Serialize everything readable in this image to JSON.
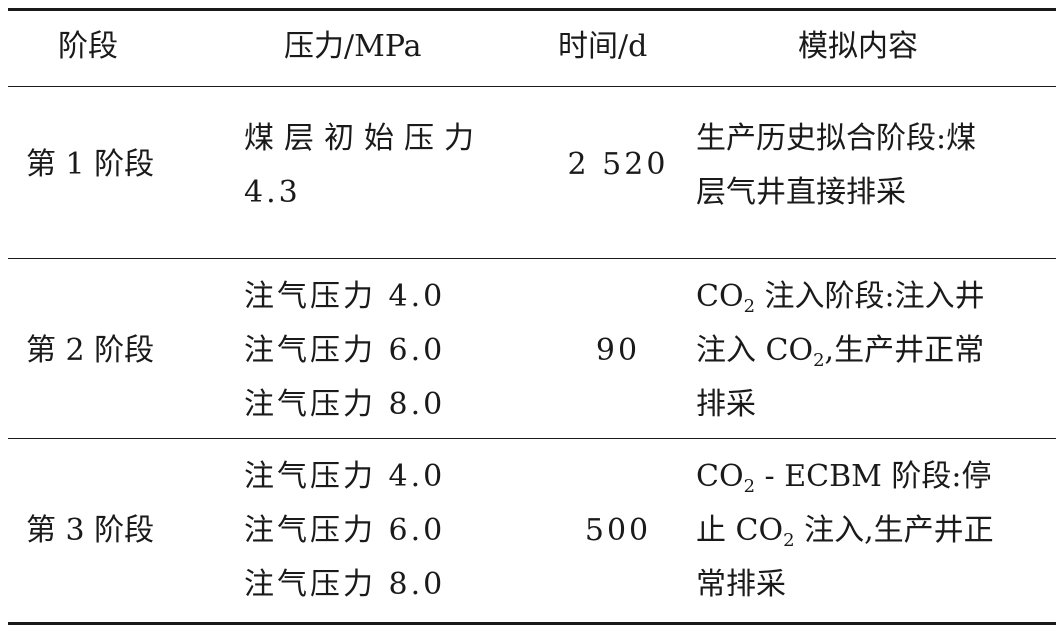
{
  "table": {
    "headers": {
      "stage": "阶段",
      "pressure": "压力/MPa",
      "time": "时间/d",
      "content": "模拟内容"
    },
    "rows": [
      {
        "stage": "第 1 阶段",
        "pressure_lines": [
          "煤层初始压力",
          "4.3"
        ],
        "time": "2 520",
        "content_lines": [
          "生产历史拟合阶段:煤",
          "层气井直接排采"
        ]
      },
      {
        "stage": "第 2 阶段",
        "pressure_lines": [
          "注气压力 4.0",
          "注气压力 6.0",
          "注气压力 8.0"
        ],
        "time": "90",
        "content_lines": [
          {
            "pre": "CO",
            "sub": "2",
            "post": " 注入阶段:注入井"
          },
          {
            "pre": "注入 CO",
            "sub": "2",
            "post": ",生产井正常"
          },
          {
            "pre": "排采",
            "sub": "",
            "post": ""
          }
        ]
      },
      {
        "stage": "第 3 阶段",
        "pressure_lines": [
          "注气压力 4.0",
          "注气压力 6.0",
          "注气压力 8.0"
        ],
        "time": "500",
        "content_lines": [
          {
            "pre": "CO",
            "sub": "2",
            "post": " - ECBM 阶段:停"
          },
          {
            "pre": "止 CO",
            "sub": "2",
            "post": " 注入,生产井正"
          },
          {
            "pre": "常排采",
            "sub": "",
            "post": ""
          }
        ]
      }
    ]
  }
}
